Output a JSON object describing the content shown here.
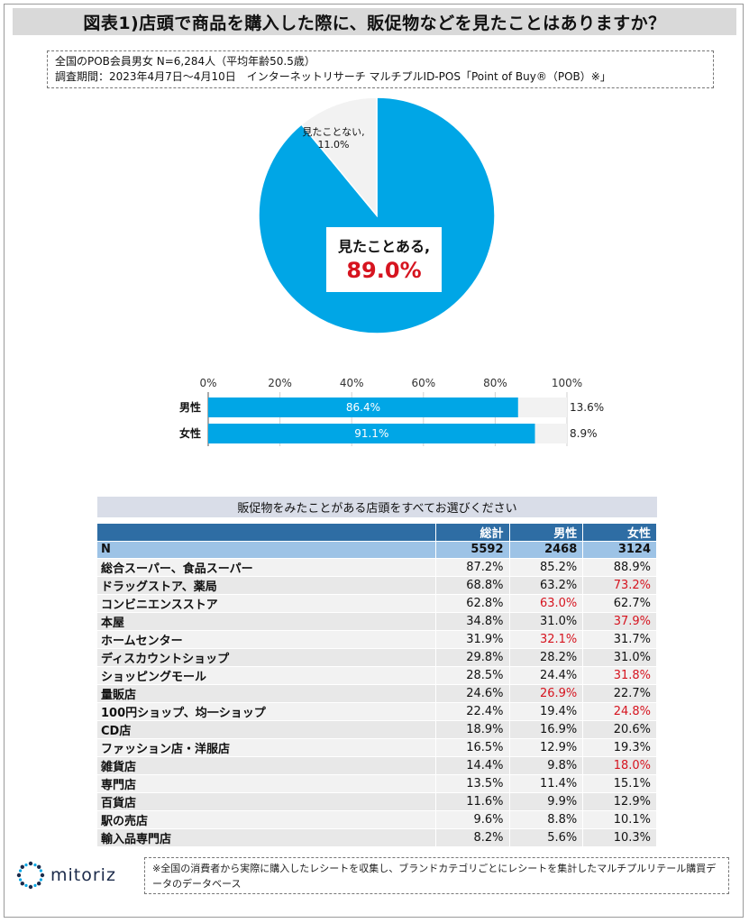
{
  "title": "図表1)店頭で商品を購入した際に、販促物などを見たことはありますか？",
  "info": {
    "line1": "全国のPOB会員男女 N=6,284人（平均年齢50.5歳）",
    "line2": "調査期間：2023年4月7日～4月10日　インターネットリサーチ マルチプルID-POS「Point of Buy®（POB）※」"
  },
  "colors": {
    "accent": "#00a6e6",
    "gray": "#f2f2f2",
    "red": "#d6141f",
    "header": "#2e6da4",
    "nrow": "#9dc3e6"
  },
  "chart_data": [
    {
      "type": "pie",
      "slices": [
        {
          "label": "見たことある,",
          "value": 89.0,
          "value_label": "89.0%"
        },
        {
          "label": "見たことない,",
          "value": 11.0,
          "value_label": "11.0%"
        }
      ]
    },
    {
      "type": "bar",
      "orientation": "horizontal",
      "stacked": true,
      "categories": [
        "男性",
        "女性"
      ],
      "series": [
        {
          "values": [
            86.4,
            91.1
          ],
          "labels": [
            "86.4%",
            "91.1%"
          ]
        },
        {
          "values": [
            13.6,
            8.9
          ],
          "labels": [
            "13.6%",
            "8.9%"
          ]
        }
      ],
      "xticks": [
        "0%",
        "20%",
        "40%",
        "60%",
        "80%",
        "100%"
      ],
      "xlim": [
        0,
        100
      ]
    },
    {
      "type": "table",
      "title": "販促物をみたことがある店頭をすべてお選びください",
      "columns": [
        "",
        "総計",
        "男性",
        "女性"
      ],
      "n_row": {
        "label": "N",
        "values": [
          "5592",
          "2468",
          "3124"
        ]
      },
      "rows": [
        {
          "name": "総合スーパー、食品スーパー",
          "values": [
            "87.2%",
            "85.2%",
            "88.9%"
          ],
          "highlight": []
        },
        {
          "name": "ドラッグストア、薬局",
          "values": [
            "68.8%",
            "63.2%",
            "73.2%"
          ],
          "highlight": [
            2
          ]
        },
        {
          "name": "コンビニエンスストア",
          "values": [
            "62.8%",
            "63.0%",
            "62.7%"
          ],
          "highlight": [
            1
          ]
        },
        {
          "name": "本屋",
          "values": [
            "34.8%",
            "31.0%",
            "37.9%"
          ],
          "highlight": [
            2
          ]
        },
        {
          "name": "ホームセンター",
          "values": [
            "31.9%",
            "32.1%",
            "31.7%"
          ],
          "highlight": [
            1
          ]
        },
        {
          "name": "ディスカウントショップ",
          "values": [
            "29.8%",
            "28.2%",
            "31.0%"
          ],
          "highlight": []
        },
        {
          "name": "ショッピングモール",
          "values": [
            "28.5%",
            "24.4%",
            "31.8%"
          ],
          "highlight": [
            2
          ]
        },
        {
          "name": "量販店",
          "values": [
            "24.6%",
            "26.9%",
            "22.7%"
          ],
          "highlight": [
            1
          ]
        },
        {
          "name": "100円ショップ、均一ショップ",
          "values": [
            "22.4%",
            "19.4%",
            "24.8%"
          ],
          "highlight": [
            2
          ]
        },
        {
          "name": "CD店",
          "values": [
            "18.9%",
            "16.9%",
            "20.6%"
          ],
          "highlight": []
        },
        {
          "name": "ファッション店・洋服店",
          "values": [
            "16.5%",
            "12.9%",
            "19.3%"
          ],
          "highlight": []
        },
        {
          "name": "雑貨店",
          "values": [
            "14.4%",
            "9.8%",
            "18.0%"
          ],
          "highlight": [
            2
          ]
        },
        {
          "name": "専門店",
          "values": [
            "13.5%",
            "11.4%",
            "15.1%"
          ],
          "highlight": []
        },
        {
          "name": "百貨店",
          "values": [
            "11.6%",
            "9.9%",
            "12.9%"
          ],
          "highlight": []
        },
        {
          "name": "駅の売店",
          "values": [
            "9.6%",
            "8.8%",
            "10.1%"
          ],
          "highlight": []
        },
        {
          "name": "輸入品専門店",
          "values": [
            "8.2%",
            "5.6%",
            "10.3%"
          ],
          "highlight": []
        }
      ]
    }
  ],
  "logo": {
    "text": "mitoriz",
    "icon": "mitoriz-logo-icon"
  },
  "footnote": "※全国の消費者から実際に購入したレシートを収集し、ブランドカテゴリごとにレシートを集計したマルチプルリテール購買データのデータベース"
}
